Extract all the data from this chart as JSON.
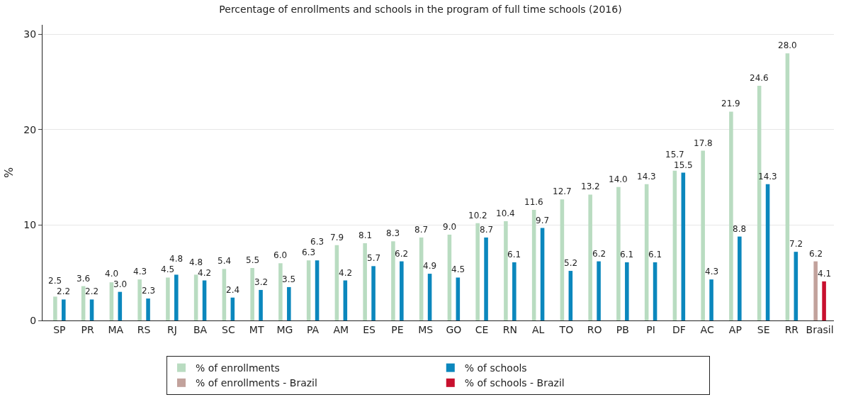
{
  "chart_data": {
    "type": "bar",
    "title": "Percentage of enrollments and schools in the program of full time schools (2016)",
    "ylabel": "%",
    "categories": [
      "SP",
      "PR",
      "MA",
      "RS",
      "RJ",
      "BA",
      "SC",
      "MT",
      "MG",
      "PA",
      "AM",
      "ES",
      "PE",
      "MS",
      "GO",
      "CE",
      "RN",
      "AL",
      "TO",
      "RO",
      "PB",
      "PI",
      "DF",
      "AC",
      "AP",
      "SE",
      "RR",
      "Brasil"
    ],
    "series": [
      {
        "name": "% of enrollments",
        "color": "#b9dcc1",
        "values": [
          2.5,
          3.6,
          4.0,
          4.3,
          4.5,
          4.8,
          5.4,
          5.5,
          6.0,
          6.3,
          7.9,
          8.1,
          8.3,
          8.7,
          9.0,
          10.2,
          10.4,
          11.6,
          12.7,
          13.2,
          14.0,
          14.3,
          15.7,
          17.8,
          21.9,
          24.6,
          28.0,
          null
        ],
        "value_labels": [
          "2.5",
          "3.6",
          "4.0",
          "4.3",
          "4.5",
          "4.8",
          "5.4",
          "5.5",
          "6.0",
          "6.3",
          "7.9",
          "8.1",
          "8.3",
          "8.7",
          "9.0",
          "10.2",
          "10.4",
          "11.6",
          "12.7",
          "13.2",
          "14.0",
          "14.3",
          "15.7",
          "17.8",
          "21.9",
          "24.6",
          "28.0",
          null
        ]
      },
      {
        "name": "% of schools",
        "color": "#0b87bd",
        "values": [
          2.2,
          2.2,
          3.0,
          2.3,
          4.8,
          4.2,
          2.4,
          3.2,
          3.5,
          6.3,
          4.2,
          5.7,
          6.2,
          4.9,
          4.5,
          8.7,
          6.1,
          9.7,
          5.2,
          6.2,
          6.1,
          6.1,
          15.5,
          4.3,
          8.8,
          14.3,
          7.2,
          null
        ],
        "value_labels": [
          "2.2",
          "2.2",
          "3.0",
          "2.3",
          "4.8",
          "4.2",
          "2.4",
          "3.2",
          "3.5",
          "6.3",
          "4.2",
          "5.7",
          "6.2",
          "4.9",
          "4.5",
          "8.7",
          "6.1",
          "9.7",
          "5.2",
          "6.2",
          "6.1",
          "6.1",
          "15.5",
          "4.3",
          "8.8",
          "14.3",
          "7.2",
          null
        ]
      },
      {
        "name": "% of enrollments - Brazil",
        "color": "#c2a29c",
        "values": [
          null,
          null,
          null,
          null,
          null,
          null,
          null,
          null,
          null,
          null,
          null,
          null,
          null,
          null,
          null,
          null,
          null,
          null,
          null,
          null,
          null,
          null,
          null,
          null,
          null,
          null,
          null,
          6.2
        ],
        "value_labels": [
          null,
          null,
          null,
          null,
          null,
          null,
          null,
          null,
          null,
          null,
          null,
          null,
          null,
          null,
          null,
          null,
          null,
          null,
          null,
          null,
          null,
          null,
          null,
          null,
          null,
          null,
          null,
          "6.2"
        ]
      },
      {
        "name": "% of schools - Brazil",
        "color": "#c8102e",
        "values": [
          null,
          null,
          null,
          null,
          null,
          null,
          null,
          null,
          null,
          null,
          null,
          null,
          null,
          null,
          null,
          null,
          null,
          null,
          null,
          null,
          null,
          null,
          null,
          null,
          null,
          null,
          null,
          4.1
        ],
        "value_labels": [
          null,
          null,
          null,
          null,
          null,
          null,
          null,
          null,
          null,
          null,
          null,
          null,
          null,
          null,
          null,
          null,
          null,
          null,
          null,
          null,
          null,
          null,
          null,
          null,
          null,
          null,
          null,
          "4.1"
        ]
      }
    ],
    "ylim": [
      0,
      31
    ],
    "yticks": [
      0,
      10,
      20,
      30
    ],
    "grid": "y",
    "legend": "bottom"
  }
}
